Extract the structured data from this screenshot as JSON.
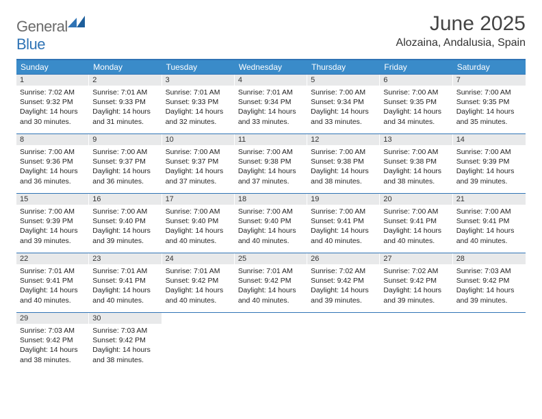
{
  "brand": {
    "word1": "General",
    "word2": "Blue"
  },
  "title": "June 2025",
  "location": "Alozaina, Andalusia, Spain",
  "weekdays": [
    "Sunday",
    "Monday",
    "Tuesday",
    "Wednesday",
    "Thursday",
    "Friday",
    "Saturday"
  ],
  "colors": {
    "header_bar": "#3a8bc9",
    "rule": "#2f73b5",
    "daynum_bg": "#e8e9ea",
    "text": "#1a1a1a"
  },
  "days": [
    {
      "n": "1",
      "sunrise": "7:02 AM",
      "sunset": "9:32 PM",
      "daylight": "14 hours and 30 minutes."
    },
    {
      "n": "2",
      "sunrise": "7:01 AM",
      "sunset": "9:33 PM",
      "daylight": "14 hours and 31 minutes."
    },
    {
      "n": "3",
      "sunrise": "7:01 AM",
      "sunset": "9:33 PM",
      "daylight": "14 hours and 32 minutes."
    },
    {
      "n": "4",
      "sunrise": "7:01 AM",
      "sunset": "9:34 PM",
      "daylight": "14 hours and 33 minutes."
    },
    {
      "n": "5",
      "sunrise": "7:00 AM",
      "sunset": "9:34 PM",
      "daylight": "14 hours and 33 minutes."
    },
    {
      "n": "6",
      "sunrise": "7:00 AM",
      "sunset": "9:35 PM",
      "daylight": "14 hours and 34 minutes."
    },
    {
      "n": "7",
      "sunrise": "7:00 AM",
      "sunset": "9:35 PM",
      "daylight": "14 hours and 35 minutes."
    },
    {
      "n": "8",
      "sunrise": "7:00 AM",
      "sunset": "9:36 PM",
      "daylight": "14 hours and 36 minutes."
    },
    {
      "n": "9",
      "sunrise": "7:00 AM",
      "sunset": "9:37 PM",
      "daylight": "14 hours and 36 minutes."
    },
    {
      "n": "10",
      "sunrise": "7:00 AM",
      "sunset": "9:37 PM",
      "daylight": "14 hours and 37 minutes."
    },
    {
      "n": "11",
      "sunrise": "7:00 AM",
      "sunset": "9:38 PM",
      "daylight": "14 hours and 37 minutes."
    },
    {
      "n": "12",
      "sunrise": "7:00 AM",
      "sunset": "9:38 PM",
      "daylight": "14 hours and 38 minutes."
    },
    {
      "n": "13",
      "sunrise": "7:00 AM",
      "sunset": "9:38 PM",
      "daylight": "14 hours and 38 minutes."
    },
    {
      "n": "14",
      "sunrise": "7:00 AM",
      "sunset": "9:39 PM",
      "daylight": "14 hours and 39 minutes."
    },
    {
      "n": "15",
      "sunrise": "7:00 AM",
      "sunset": "9:39 PM",
      "daylight": "14 hours and 39 minutes."
    },
    {
      "n": "16",
      "sunrise": "7:00 AM",
      "sunset": "9:40 PM",
      "daylight": "14 hours and 39 minutes."
    },
    {
      "n": "17",
      "sunrise": "7:00 AM",
      "sunset": "9:40 PM",
      "daylight": "14 hours and 40 minutes."
    },
    {
      "n": "18",
      "sunrise": "7:00 AM",
      "sunset": "9:40 PM",
      "daylight": "14 hours and 40 minutes."
    },
    {
      "n": "19",
      "sunrise": "7:00 AM",
      "sunset": "9:41 PM",
      "daylight": "14 hours and 40 minutes."
    },
    {
      "n": "20",
      "sunrise": "7:00 AM",
      "sunset": "9:41 PM",
      "daylight": "14 hours and 40 minutes."
    },
    {
      "n": "21",
      "sunrise": "7:00 AM",
      "sunset": "9:41 PM",
      "daylight": "14 hours and 40 minutes."
    },
    {
      "n": "22",
      "sunrise": "7:01 AM",
      "sunset": "9:41 PM",
      "daylight": "14 hours and 40 minutes."
    },
    {
      "n": "23",
      "sunrise": "7:01 AM",
      "sunset": "9:41 PM",
      "daylight": "14 hours and 40 minutes."
    },
    {
      "n": "24",
      "sunrise": "7:01 AM",
      "sunset": "9:42 PM",
      "daylight": "14 hours and 40 minutes."
    },
    {
      "n": "25",
      "sunrise": "7:01 AM",
      "sunset": "9:42 PM",
      "daylight": "14 hours and 40 minutes."
    },
    {
      "n": "26",
      "sunrise": "7:02 AM",
      "sunset": "9:42 PM",
      "daylight": "14 hours and 39 minutes."
    },
    {
      "n": "27",
      "sunrise": "7:02 AM",
      "sunset": "9:42 PM",
      "daylight": "14 hours and 39 minutes."
    },
    {
      "n": "28",
      "sunrise": "7:03 AM",
      "sunset": "9:42 PM",
      "daylight": "14 hours and 39 minutes."
    },
    {
      "n": "29",
      "sunrise": "7:03 AM",
      "sunset": "9:42 PM",
      "daylight": "14 hours and 38 minutes."
    },
    {
      "n": "30",
      "sunrise": "7:03 AM",
      "sunset": "9:42 PM",
      "daylight": "14 hours and 38 minutes."
    }
  ],
  "labels": {
    "sunrise": "Sunrise: ",
    "sunset": "Sunset: ",
    "daylight": "Daylight: "
  },
  "start_offset": 0,
  "total_cells": 35
}
